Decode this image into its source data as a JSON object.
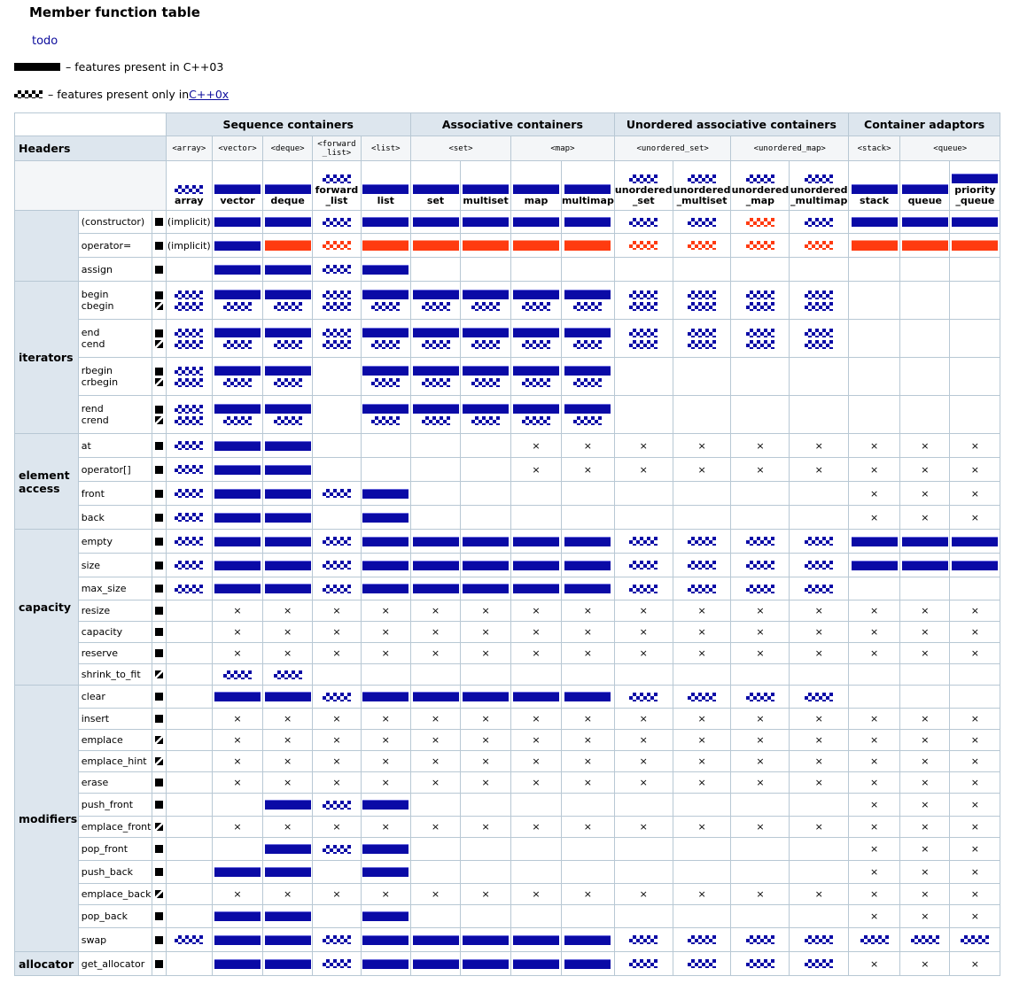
{
  "title": "Member function table",
  "todo_link": "todo",
  "legend": {
    "cpp03": "– features present in C++03",
    "cpp0x_prefix": "– features present only in ",
    "cpp0x_link": "C++0x"
  },
  "colors": {
    "present": "#0a0aa6",
    "changed": "#ff3b10",
    "border": "#b8c8d4",
    "header_bg": "#dde6ee"
  },
  "groups": [
    {
      "label": "Sequence containers",
      "span": 5
    },
    {
      "label": "Associative containers",
      "span": 4
    },
    {
      "label": "Unordered associative containers",
      "span": 4
    },
    {
      "label": "Container adaptors",
      "span": 3
    }
  ],
  "headers_label": "Headers",
  "headers": [
    {
      "label": "<array>",
      "span": 1
    },
    {
      "label": "<vector>",
      "span": 1
    },
    {
      "label": "<deque>",
      "span": 1
    },
    {
      "label": "<forward_list>",
      "span": 1
    },
    {
      "label": "<list>",
      "span": 1
    },
    {
      "label": "<set>",
      "span": 2
    },
    {
      "label": "<map>",
      "span": 2
    },
    {
      "label": "<unordered_set>",
      "span": 2
    },
    {
      "label": "<unordered_map>",
      "span": 2
    },
    {
      "label": "<stack>",
      "span": 1
    },
    {
      "label": "<queue>",
      "span": 2
    }
  ],
  "containers": [
    {
      "name": "array",
      "std": "0x"
    },
    {
      "name": "vector",
      "std": "03"
    },
    {
      "name": "deque",
      "std": "03"
    },
    {
      "name": "forward\n_list",
      "std": "0x"
    },
    {
      "name": "list",
      "std": "03"
    },
    {
      "name": "set",
      "std": "03"
    },
    {
      "name": "multiset",
      "std": "03"
    },
    {
      "name": "map",
      "std": "03"
    },
    {
      "name": "multimap",
      "std": "03"
    },
    {
      "name": "unordered\n_set",
      "std": "0x"
    },
    {
      "name": "unordered\n_multiset",
      "std": "0x"
    },
    {
      "name": "unordered\n_map",
      "std": "0x"
    },
    {
      "name": "unordered\n_multimap",
      "std": "0x"
    },
    {
      "name": "stack",
      "std": "03"
    },
    {
      "name": "queue",
      "std": "03"
    },
    {
      "name": "priority\n_queue",
      "std": "03"
    }
  ],
  "sections": [
    {
      "label": "",
      "rows": [
        {
          "fn": "(constructor)",
          "mk": "B",
          "h": 26,
          "cells": [
            "(implicit)",
            "S",
            "S",
            "C",
            "S",
            "S",
            "S",
            "S",
            "S",
            "C",
            "C",
            "c",
            "C",
            "S",
            "S",
            "S"
          ]
        },
        {
          "fn": "operator=",
          "mk": "B",
          "h": 27,
          "cells": [
            "(implicit)",
            "S",
            "s",
            "c",
            "s",
            "s",
            "s",
            "s",
            "s",
            "c",
            "c",
            "c",
            "c",
            "s",
            "s",
            "s"
          ]
        },
        {
          "fn": "assign",
          "mk": "B",
          "h": 27,
          "cells": [
            "",
            "S",
            "S",
            "C",
            "S",
            "",
            "",
            "",
            "",
            "",
            "",
            "",
            "",
            "",
            "",
            ""
          ]
        }
      ]
    },
    {
      "label": "iterators",
      "rows": [
        {
          "fn": "begin\ncbegin",
          "mk": "BH",
          "h": 43,
          "cells": [
            "CC",
            "SC",
            "SC",
            "CC",
            "SC",
            "SC",
            "SC",
            "SC",
            "SC",
            "CC",
            "CC",
            "CC",
            "CC",
            "",
            "",
            ""
          ]
        },
        {
          "fn": "end\ncend",
          "mk": "BH",
          "h": 43,
          "cells": [
            "CC",
            "SC",
            "SC",
            "CC",
            "SC",
            "SC",
            "SC",
            "SC",
            "SC",
            "CC",
            "CC",
            "CC",
            "CC",
            "",
            "",
            ""
          ]
        },
        {
          "fn": "rbegin\ncrbegin",
          "mk": "BH",
          "h": 43,
          "cells": [
            "CC",
            "SC",
            "SC",
            "",
            "SC",
            "SC",
            "SC",
            "SC",
            "SC",
            "",
            "",
            "",
            "",
            "",
            "",
            ""
          ]
        },
        {
          "fn": "rend\ncrend",
          "mk": "BH",
          "h": 43,
          "cells": [
            "CC",
            "SC",
            "SC",
            "",
            "SC",
            "SC",
            "SC",
            "SC",
            "SC",
            "",
            "",
            "",
            "",
            "",
            "",
            ""
          ]
        }
      ]
    },
    {
      "label": "element\naccess",
      "rows": [
        {
          "fn": "at",
          "mk": "B",
          "h": 27,
          "cells": [
            "C",
            "S",
            "S",
            "",
            "",
            "",
            "",
            "x",
            "x",
            "x",
            "x",
            "x",
            "x",
            "x",
            "x",
            "x"
          ]
        },
        {
          "fn": "operator[]",
          "mk": "B",
          "h": 27,
          "cells": [
            "C",
            "S",
            "S",
            "",
            "",
            "",
            "",
            "x",
            "x",
            "x",
            "x",
            "x",
            "x",
            "x",
            "x",
            "x"
          ]
        },
        {
          "fn": "front",
          "mk": "B",
          "h": 27,
          "cells": [
            "C",
            "S",
            "S",
            "C",
            "S",
            "",
            "",
            "",
            "",
            "",
            "",
            "",
            "",
            "x",
            "x",
            "x"
          ]
        },
        {
          "fn": "back",
          "mk": "B",
          "h": 27,
          "cells": [
            "C",
            "S",
            "S",
            "",
            "S",
            "",
            "",
            "",
            "",
            "",
            "",
            "",
            "",
            "x",
            "x",
            "x"
          ]
        }
      ]
    },
    {
      "label": "capacity",
      "rows": [
        {
          "fn": "empty",
          "mk": "B",
          "h": 27,
          "cells": [
            "C",
            "S",
            "S",
            "C",
            "S",
            "S",
            "S",
            "S",
            "S",
            "C",
            "C",
            "C",
            "C",
            "S",
            "S",
            "S"
          ]
        },
        {
          "fn": "size",
          "mk": "B",
          "h": 27,
          "cells": [
            "C",
            "S",
            "S",
            "C",
            "S",
            "S",
            "S",
            "S",
            "S",
            "C",
            "C",
            "C",
            "C",
            "S",
            "S",
            "S"
          ]
        },
        {
          "fn": "max_size",
          "mk": "B",
          "h": 26,
          "cells": [
            "C",
            "S",
            "S",
            "C",
            "S",
            "S",
            "S",
            "S",
            "S",
            "C",
            "C",
            "C",
            "C",
            "",
            "",
            ""
          ]
        },
        {
          "fn": "resize",
          "mk": "B",
          "h": 24,
          "cells": [
            "",
            "x",
            "x",
            "x",
            "x",
            "x",
            "x",
            "x",
            "x",
            "x",
            "x",
            "x",
            "x",
            "x",
            "x",
            "x"
          ]
        },
        {
          "fn": "capacity",
          "mk": "B",
          "h": 24,
          "cells": [
            "",
            "x",
            "x",
            "x",
            "x",
            "x",
            "x",
            "x",
            "x",
            "x",
            "x",
            "x",
            "x",
            "x",
            "x",
            "x"
          ]
        },
        {
          "fn": "reserve",
          "mk": "B",
          "h": 24,
          "cells": [
            "",
            "x",
            "x",
            "x",
            "x",
            "x",
            "x",
            "x",
            "x",
            "x",
            "x",
            "x",
            "x",
            "x",
            "x",
            "x"
          ]
        },
        {
          "fn": "shrink_to_fit",
          "mk": "H",
          "h": 24,
          "cells": [
            "",
            "C",
            "C",
            "",
            "",
            "",
            "",
            "",
            "",
            "",
            "",
            "",
            "",
            "",
            "",
            ""
          ]
        }
      ]
    },
    {
      "label": "modifiers",
      "rows": [
        {
          "fn": "clear",
          "mk": "B",
          "h": 26,
          "cells": [
            "",
            "S",
            "S",
            "C",
            "S",
            "S",
            "S",
            "S",
            "S",
            "C",
            "C",
            "C",
            "C",
            "",
            "",
            ""
          ]
        },
        {
          "fn": "insert",
          "mk": "B",
          "h": 24,
          "cells": [
            "",
            "x",
            "x",
            "x",
            "x",
            "x",
            "x",
            "x",
            "x",
            "x",
            "x",
            "x",
            "x",
            "x",
            "x",
            "x"
          ]
        },
        {
          "fn": "emplace",
          "mk": "H",
          "h": 24,
          "cells": [
            "",
            "x",
            "x",
            "x",
            "x",
            "x",
            "x",
            "x",
            "x",
            "x",
            "x",
            "x",
            "x",
            "x",
            "x",
            "x"
          ]
        },
        {
          "fn": "emplace_hint",
          "mk": "H",
          "h": 24,
          "cells": [
            "",
            "x",
            "x",
            "x",
            "x",
            "x",
            "x",
            "x",
            "x",
            "x",
            "x",
            "x",
            "x",
            "x",
            "x",
            "x"
          ]
        },
        {
          "fn": "erase",
          "mk": "B",
          "h": 24,
          "cells": [
            "",
            "x",
            "x",
            "x",
            "x",
            "x",
            "x",
            "x",
            "x",
            "x",
            "x",
            "x",
            "x",
            "x",
            "x",
            "x"
          ]
        },
        {
          "fn": "push_front",
          "mk": "B",
          "h": 26,
          "cells": [
            "",
            "",
            "S",
            "C",
            "S",
            "",
            "",
            "",
            "",
            "",
            "",
            "",
            "",
            "x",
            "x",
            "x"
          ]
        },
        {
          "fn": "emplace_front",
          "mk": "H",
          "h": 24,
          "cells": [
            "",
            "x",
            "x",
            "x",
            "x",
            "x",
            "x",
            "x",
            "x",
            "x",
            "x",
            "x",
            "x",
            "x",
            "x",
            "x"
          ]
        },
        {
          "fn": "pop_front",
          "mk": "B",
          "h": 26,
          "cells": [
            "",
            "",
            "S",
            "C",
            "S",
            "",
            "",
            "",
            "",
            "",
            "",
            "",
            "",
            "x",
            "x",
            "x"
          ]
        },
        {
          "fn": "push_back",
          "mk": "B",
          "h": 26,
          "cells": [
            "",
            "S",
            "S",
            "",
            "S",
            "",
            "",
            "",
            "",
            "",
            "",
            "",
            "",
            "x",
            "x",
            "x"
          ]
        },
        {
          "fn": "emplace_back",
          "mk": "H",
          "h": 24,
          "cells": [
            "",
            "x",
            "x",
            "x",
            "x",
            "x",
            "x",
            "x",
            "x",
            "x",
            "x",
            "x",
            "x",
            "x",
            "x",
            "x"
          ]
        },
        {
          "fn": "pop_back",
          "mk": "B",
          "h": 26,
          "cells": [
            "",
            "S",
            "S",
            "",
            "S",
            "",
            "",
            "",
            "",
            "",
            "",
            "",
            "",
            "x",
            "x",
            "x"
          ]
        },
        {
          "fn": "swap",
          "mk": "B",
          "h": 27,
          "cells": [
            "C",
            "S",
            "S",
            "C",
            "S",
            "S",
            "S",
            "S",
            "S",
            "C",
            "C",
            "C",
            "C",
            "C",
            "C",
            "C"
          ]
        }
      ]
    },
    {
      "label": "allocator",
      "rows": [
        {
          "fn": "get_allocator",
          "mk": "B",
          "h": 27,
          "cells": [
            "",
            "S",
            "S",
            "C",
            "S",
            "S",
            "S",
            "S",
            "S",
            "C",
            "C",
            "C",
            "C",
            "x",
            "x",
            "x"
          ]
        }
      ]
    }
  ]
}
